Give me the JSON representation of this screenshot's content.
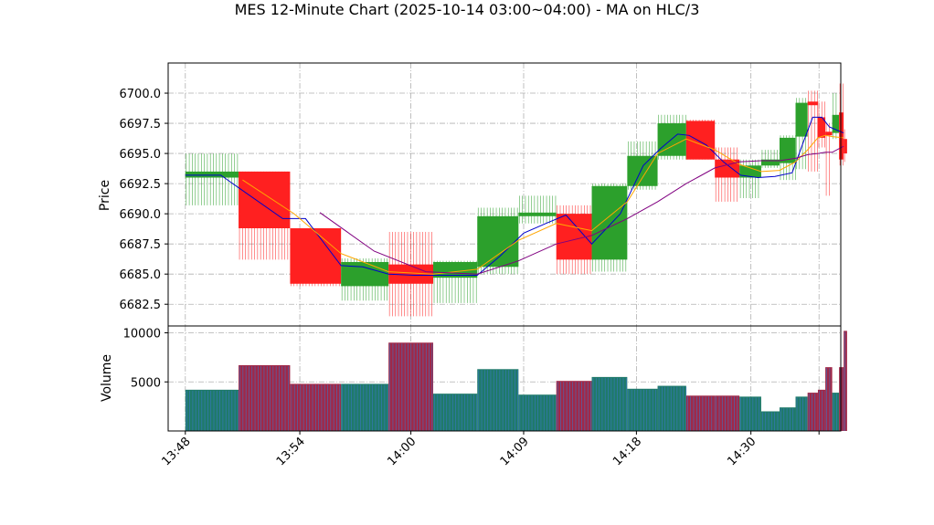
{
  "chart_data": {
    "type": "candlestick",
    "title": "MES 12-Minute Chart (2025-10-14 03:00~04:00) - MA on HLC/3",
    "price_panel": {
      "ylabel": "Price",
      "ylim": [
        6680.7,
        6702.5
      ],
      "yticks": [
        6682.5,
        6685.0,
        6687.5,
        6690.0,
        6692.5,
        6695.0,
        6697.5,
        6700.0
      ],
      "ytick_labels": [
        "6682.5",
        "6685.0",
        "6687.5",
        "6690.0",
        "6692.5",
        "6695.0",
        "6697.5",
        "6700.0"
      ]
    },
    "volume_panel": {
      "ylabel": "Volume",
      "ylim": [
        0,
        10700
      ],
      "yticks": [
        5000,
        10000
      ],
      "ytick_labels": [
        "5000",
        "10000"
      ]
    },
    "xlim": [
      -0.3,
      11.45
    ],
    "xticks": [
      0.0,
      2.0,
      3.94,
      5.91,
      7.88,
      9.88,
      11.07
    ],
    "xtick_labels": [
      "13:48",
      "13:54",
      "14:00",
      "14:09",
      "14:18",
      "14:30",
      ""
    ],
    "colors": {
      "up": "#2ca02c",
      "down": "#ff2020",
      "ma_fast": "#0000cc",
      "ma_mid": "#ffa500",
      "ma_slow": "#800080",
      "vol_up": "#1f7a6a",
      "vol_down": "#a02848"
    },
    "candles": [
      {
        "x0": 0.0,
        "x1": 0.93,
        "open": 6693.0,
        "close": 6693.5,
        "high": 6695.0,
        "low": 6690.7,
        "volume": 4200,
        "dir": "up"
      },
      {
        "x0": 0.93,
        "x1": 1.83,
        "open": 6693.5,
        "close": 6688.8,
        "high": 6693.5,
        "low": 6686.2,
        "volume": 6700,
        "dir": "down"
      },
      {
        "x0": 1.83,
        "x1": 2.72,
        "open": 6688.8,
        "close": 6684.2,
        "high": 6688.8,
        "low": 6684.0,
        "volume": 4800,
        "dir": "down"
      },
      {
        "x0": 2.72,
        "x1": 3.55,
        "open": 6684.0,
        "close": 6686.0,
        "high": 6686.3,
        "low": 6682.8,
        "volume": 4800,
        "dir": "up"
      },
      {
        "x0": 3.55,
        "x1": 4.33,
        "open": 6685.8,
        "close": 6684.2,
        "high": 6688.5,
        "low": 6681.5,
        "volume": 9000,
        "dir": "down"
      },
      {
        "x0": 4.33,
        "x1": 5.1,
        "open": 6684.7,
        "close": 6686.0,
        "high": 6686.1,
        "low": 6682.6,
        "volume": 3800,
        "dir": "up"
      },
      {
        "x0": 5.1,
        "x1": 5.82,
        "open": 6685.6,
        "close": 6689.8,
        "high": 6690.5,
        "low": 6685.0,
        "volume": 6300,
        "dir": "up"
      },
      {
        "x0": 5.82,
        "x1": 6.48,
        "open": 6689.8,
        "close": 6690.1,
        "high": 6691.5,
        "low": 6689.2,
        "volume": 3700,
        "dir": "up"
      },
      {
        "x0": 6.48,
        "x1": 7.1,
        "open": 6690.0,
        "close": 6686.2,
        "high": 6690.7,
        "low": 6685.0,
        "volume": 5100,
        "dir": "down"
      },
      {
        "x0": 7.1,
        "x1": 7.72,
        "open": 6686.2,
        "close": 6692.3,
        "high": 6692.5,
        "low": 6685.2,
        "volume": 5500,
        "dir": "up"
      },
      {
        "x0": 7.72,
        "x1": 8.25,
        "open": 6692.3,
        "close": 6694.8,
        "high": 6696.0,
        "low": 6692.0,
        "volume": 4300,
        "dir": "up"
      },
      {
        "x0": 8.25,
        "x1": 8.75,
        "open": 6694.8,
        "close": 6697.5,
        "high": 6698.2,
        "low": 6694.5,
        "volume": 4600,
        "dir": "up"
      },
      {
        "x0": 8.75,
        "x1": 9.25,
        "open": 6697.7,
        "close": 6694.5,
        "high": 6697.8,
        "low": 6694.5,
        "volume": 3600,
        "dir": "down"
      },
      {
        "x0": 9.25,
        "x1": 9.68,
        "open": 6694.5,
        "close": 6693.0,
        "high": 6695.5,
        "low": 6691.0,
        "volume": 3600,
        "dir": "down"
      },
      {
        "x0": 9.68,
        "x1": 10.06,
        "open": 6693.0,
        "close": 6694.0,
        "high": 6694.5,
        "low": 6691.3,
        "volume": 3500,
        "dir": "up"
      },
      {
        "x0": 10.06,
        "x1": 10.38,
        "open": 6694.0,
        "close": 6694.5,
        "high": 6695.3,
        "low": 6693.8,
        "volume": 2000,
        "dir": "up"
      },
      {
        "x0": 10.38,
        "x1": 10.66,
        "open": 6694.2,
        "close": 6696.3,
        "high": 6696.5,
        "low": 6692.8,
        "volume": 2400,
        "dir": "up"
      },
      {
        "x0": 10.66,
        "x1": 10.87,
        "open": 6696.4,
        "close": 6699.2,
        "high": 6699.6,
        "low": 6693.7,
        "volume": 3500,
        "dir": "up"
      },
      {
        "x0": 10.87,
        "x1": 11.05,
        "open": 6699.3,
        "close": 6699.0,
        "high": 6700.2,
        "low": 6693.5,
        "volume": 3900,
        "dir": "down"
      },
      {
        "x0": 11.05,
        "x1": 11.18,
        "open": 6698.0,
        "close": 6696.3,
        "high": 6699.3,
        "low": 6695.5,
        "volume": 4200,
        "dir": "down"
      },
      {
        "x0": 11.18,
        "x1": 11.3,
        "open": 6696.5,
        "close": 6696.8,
        "high": 6697.5,
        "low": 6691.5,
        "volume": 6500,
        "dir": "down"
      },
      {
        "x0": 11.3,
        "x1": 11.42,
        "open": 6696.7,
        "close": 6698.2,
        "high": 6700.0,
        "low": 6696.2,
        "volume": 3900,
        "dir": "up"
      },
      {
        "x0": 11.42,
        "x1": 11.5,
        "open": 6698.4,
        "close": 6694.5,
        "high": 6700.8,
        "low": 6694.0,
        "volume": 6500,
        "dir": "down"
      },
      {
        "x0": 11.5,
        "x1": 11.56,
        "open": 6696.2,
        "close": 6695.0,
        "high": 6697.0,
        "low": 6694.3,
        "volume": 10200,
        "dir": "down"
      }
    ],
    "series": [
      {
        "color": "#0000cc",
        "x": [
          0.0,
          0.62,
          1.7,
          2.1,
          2.72,
          3.1,
          3.55,
          4.0,
          4.5,
          5.1,
          5.5,
          5.91,
          6.3,
          6.65,
          7.1,
          7.6,
          8.0,
          8.3,
          8.6,
          8.8,
          9.1,
          9.4,
          9.7,
          10.0,
          10.3,
          10.6,
          10.8,
          10.96,
          11.12,
          11.25,
          11.4,
          11.5
        ],
        "values": [
          6693.2,
          6693.2,
          6689.6,
          6689.6,
          6685.7,
          6685.6,
          6685.0,
          6684.9,
          6684.9,
          6684.9,
          6686.5,
          6688.4,
          6689.2,
          6689.9,
          6687.5,
          6690.0,
          6694.0,
          6695.4,
          6696.6,
          6696.5,
          6695.7,
          6694.3,
          6693.2,
          6693.0,
          6693.1,
          6693.4,
          6696.0,
          6698.0,
          6698.0,
          6697.2,
          6696.9,
          6696.7
        ]
      },
      {
        "color": "#ffa500",
        "x": [
          1.0,
          1.9,
          2.72,
          3.55,
          4.33,
          5.1,
          5.82,
          6.48,
          7.1,
          7.72,
          8.25,
          8.75,
          9.25,
          9.68,
          10.06,
          10.38,
          10.66,
          10.87,
          11.05,
          11.18,
          11.3,
          11.5
        ],
        "values": [
          6692.8,
          6690.0,
          6686.7,
          6685.2,
          6685.0,
          6685.4,
          6687.8,
          6689.2,
          6688.6,
          6691.0,
          6695.0,
          6696.2,
          6695.3,
          6694.1,
          6693.5,
          6693.6,
          6694.3,
          6695.3,
          6696.3,
          6696.5,
          6696.4,
          6696.3
        ]
      },
      {
        "color": "#800080",
        "x": [
          2.35,
          3.3,
          4.2,
          5.1,
          5.82,
          6.48,
          7.1,
          7.72,
          8.25,
          8.75,
          9.25,
          9.68,
          10.06,
          10.38,
          10.66,
          10.87,
          11.05,
          11.18,
          11.3,
          11.5
        ],
        "values": [
          6690.1,
          6686.9,
          6685.2,
          6685.0,
          6686.1,
          6687.5,
          6688.2,
          6689.6,
          6691.0,
          6692.5,
          6693.8,
          6694.3,
          6694.4,
          6694.4,
          6694.6,
          6694.9,
          6695.0,
          6695.1,
          6695.1,
          6695.6
        ]
      }
    ]
  }
}
